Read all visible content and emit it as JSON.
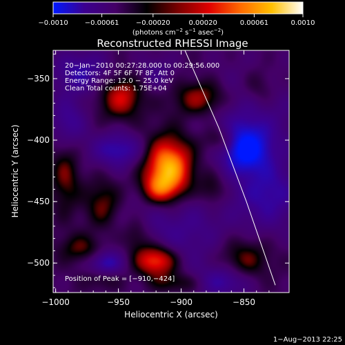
{
  "chart_data": {
    "type": "heatmap",
    "title": "Reconstructed RHESSI Image",
    "xlabel": "Heliocentric X (arcsec)",
    "ylabel": "Heliocentric Y (arcsec)",
    "xlim": [
      -1002,
      -814
    ],
    "ylim": [
      -524,
      -327
    ],
    "x_ticks": [
      {
        "value": -1000,
        "label": "−1000"
      },
      {
        "value": -950,
        "label": "−950"
      },
      {
        "value": -900,
        "label": "−900"
      },
      {
        "value": -850,
        "label": "−850"
      }
    ],
    "y_ticks": [
      {
        "value": -350,
        "label": "−350"
      },
      {
        "value": -400,
        "label": "−400"
      },
      {
        "value": -450,
        "label": "−450"
      },
      {
        "value": -500,
        "label": "−500"
      }
    ],
    "annotation_lines": [
      "20−Jan−2010 00:27:28.000 to 00:29:56.000",
      "Detectors: 4F 5F 6F 7F 8F, Att 0",
      "Energy Range: 12.0 − 25.0 keV",
      "Clean    Total counts: 1.75E+04"
    ],
    "peak_label": "Position of Peak = [−910,−424]",
    "peak": [
      -910,
      -424
    ],
    "colorbar": {
      "range": [
        -0.001,
        0.001
      ],
      "tick_labels": [
        "−0.0010",
        "−0.00061",
        "−0.00020",
        "0.00020",
        "0.00061",
        "0.0010"
      ],
      "unit_html": "(photons cm<tspan dy=\"-4\" font-size=\"7\">−2</tspan><tspan dy=\"4\"> s</tspan><tspan dy=\"-4\" font-size=\"7\">−1</tspan><tspan dy=\"4\"> asec</tspan><tspan dy=\"-4\" font-size=\"7\">−2</tspan><tspan dy=\"4\">)</tspan>",
      "colors": [
        "#0018ff",
        "#3b0090",
        "#440066",
        "#000000",
        "#7a0000",
        "#e00000",
        "#ff6a00",
        "#ffc000",
        "#ffffff"
      ]
    },
    "limb_points": [
      [
        -897,
        -327
      ],
      [
        -870,
        -390
      ],
      [
        -848,
        -450
      ],
      [
        -825,
        -518
      ]
    ],
    "sources": [
      {
        "x": -910,
        "y": -424,
        "sx": 14,
        "sy": 18,
        "amp": 1.0
      },
      {
        "x": -918,
        "y": -440,
        "sx": 10,
        "sy": 8,
        "amp": 0.35
      },
      {
        "x": -920,
        "y": -498,
        "sx": 12,
        "sy": 9,
        "amp": 0.78
      },
      {
        "x": -935,
        "y": -478,
        "sx": 8,
        "sy": 10,
        "amp": 0.3
      },
      {
        "x": -948,
        "y": -365,
        "sx": 12,
        "sy": 12,
        "amp": 0.5
      },
      {
        "x": -884,
        "y": -366,
        "sx": 15,
        "sy": 10,
        "amp": 0.45
      },
      {
        "x": -868,
        "y": -400,
        "sx": 10,
        "sy": 8,
        "amp": 0.35
      },
      {
        "x": -875,
        "y": -440,
        "sx": 8,
        "sy": 10,
        "amp": 0.3
      },
      {
        "x": -962,
        "y": -452,
        "sx": 10,
        "sy": 14,
        "amp": 0.35
      },
      {
        "x": -980,
        "y": -488,
        "sx": 12,
        "sy": 8,
        "amp": 0.3
      },
      {
        "x": -992,
        "y": -430,
        "sx": 8,
        "sy": 20,
        "amp": 0.32
      },
      {
        "x": -850,
        "y": -497,
        "sx": 14,
        "sy": 12,
        "amp": 0.35
      },
      {
        "x": -838,
        "y": -358,
        "sx": 10,
        "sy": 12,
        "amp": 0.25
      },
      {
        "x": -905,
        "y": -516,
        "sx": 14,
        "sy": 6,
        "amp": 0.3
      },
      {
        "x": -962,
        "y": -513,
        "sx": 10,
        "sy": 6,
        "amp": 0.2
      },
      {
        "x": -950,
        "y": -408,
        "sx": 15,
        "sy": 10,
        "amp": -0.45
      },
      {
        "x": -849,
        "y": -407,
        "sx": 12,
        "sy": 12,
        "amp": -0.7
      },
      {
        "x": -845,
        "y": -385,
        "sx": 26,
        "sy": 30,
        "amp": -0.3
      },
      {
        "x": -990,
        "y": -385,
        "sx": 10,
        "sy": 14,
        "amp": -0.35
      },
      {
        "x": -960,
        "y": -500,
        "sx": 9,
        "sy": 7,
        "amp": -0.45
      },
      {
        "x": -865,
        "y": -515,
        "sx": 14,
        "sy": 9,
        "amp": -0.38
      },
      {
        "x": -980,
        "y": -345,
        "sx": 16,
        "sy": 12,
        "amp": -0.4
      },
      {
        "x": -905,
        "y": -470,
        "sx": 30,
        "sy": 30,
        "amp": -0.3
      },
      {
        "x": -830,
        "y": -445,
        "sx": 18,
        "sy": 20,
        "amp": -0.38
      },
      {
        "x": -920,
        "y": -345,
        "sx": 10,
        "sy": 10,
        "amp": -0.22
      }
    ],
    "baseline": -0.22
  },
  "footer": {
    "timestamp": "1−Aug−2013 22:25"
  }
}
